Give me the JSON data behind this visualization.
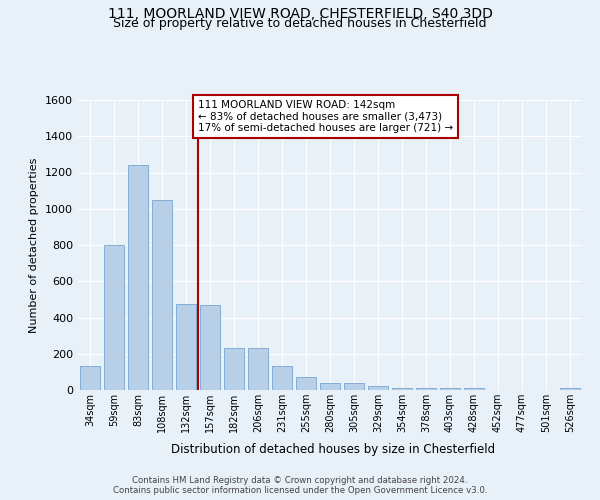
{
  "title_line1": "111, MOORLAND VIEW ROAD, CHESTERFIELD, S40 3DD",
  "title_line2": "Size of property relative to detached houses in Chesterfield",
  "xlabel": "Distribution of detached houses by size in Chesterfield",
  "ylabel": "Number of detached properties",
  "footer_line1": "Contains HM Land Registry data © Crown copyright and database right 2024.",
  "footer_line2": "Contains public sector information licensed under the Open Government Licence v3.0.",
  "annotation_line1": "111 MOORLAND VIEW ROAD: 142sqm",
  "annotation_line2": "← 83% of detached houses are smaller (3,473)",
  "annotation_line3": "17% of semi-detached houses are larger (721) →",
  "bar_color": "#b8cfe8",
  "bar_edge_color": "#6699cc",
  "vline_color": "#aa0000",
  "vline_x": 4.5,
  "categories": [
    "34sqm",
    "59sqm",
    "83sqm",
    "108sqm",
    "132sqm",
    "157sqm",
    "182sqm",
    "206sqm",
    "231sqm",
    "255sqm",
    "280sqm",
    "305sqm",
    "329sqm",
    "354sqm",
    "378sqm",
    "403sqm",
    "428sqm",
    "452sqm",
    "477sqm",
    "501sqm",
    "526sqm"
  ],
  "values": [
    130,
    800,
    1240,
    1050,
    475,
    470,
    230,
    230,
    130,
    70,
    40,
    40,
    20,
    10,
    10,
    10,
    10,
    0,
    0,
    0,
    10
  ],
  "ylim": [
    0,
    1600
  ],
  "yticks": [
    0,
    200,
    400,
    600,
    800,
    1000,
    1200,
    1400,
    1600
  ],
  "bg_color": "#e8f0f8",
  "plot_bg_color": "#e8f0f8",
  "grid_color": "#ffffff",
  "title_fontsize": 10,
  "subtitle_fontsize": 9
}
